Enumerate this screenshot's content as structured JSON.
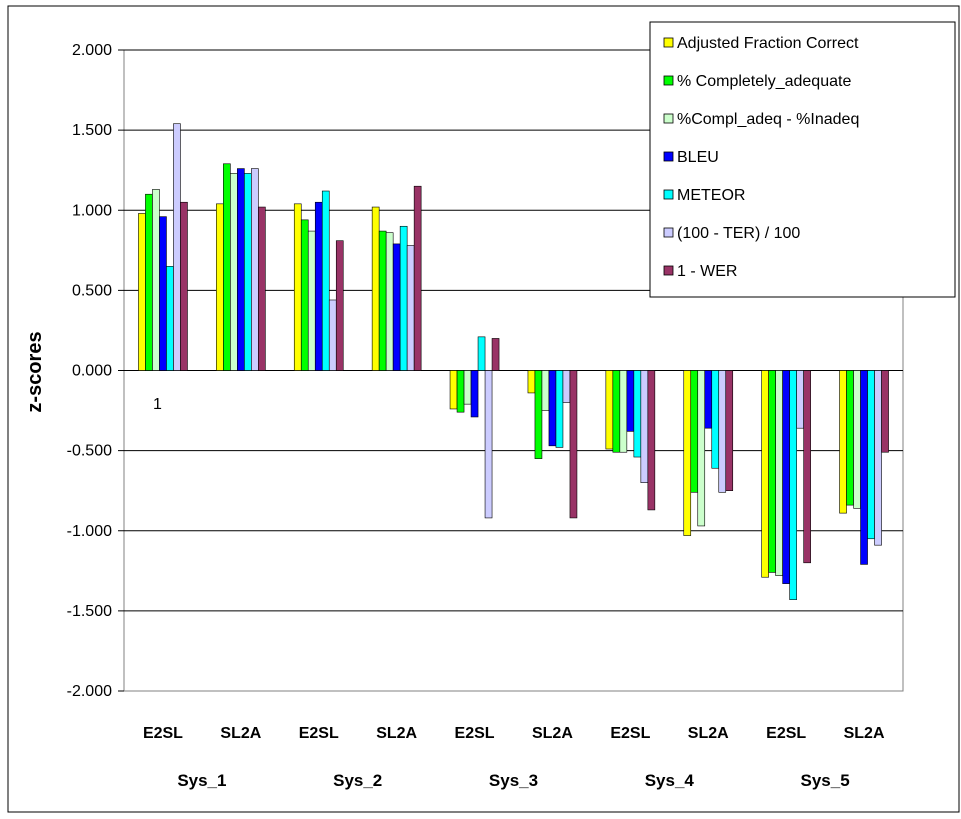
{
  "chart_data": {
    "type": "bar",
    "ylabel": "z-scores",
    "ylim": [
      -2.0,
      2.0
    ],
    "yticks": [
      "2.000",
      "1.500",
      "1.000",
      "0.500",
      "0.000",
      "-0.500",
      "-1.000",
      "-1.500",
      "-2.000"
    ],
    "yticks_values": [
      2.0,
      1.5,
      1.0,
      0.5,
      0.0,
      -0.5,
      -1.0,
      -1.5,
      -2.0
    ],
    "grid": true,
    "legend_position": "top-right",
    "groups": [
      "Sys_1",
      "Sys_2",
      "Sys_3",
      "Sys_4",
      "Sys_5"
    ],
    "subcategories": [
      "E2SL",
      "SL2A"
    ],
    "annotation": "1",
    "series": [
      {
        "name": "Adjusted Fraction Correct",
        "color": "#ffff00",
        "values": [
          0.98,
          1.04,
          1.04,
          1.02,
          -0.24,
          -0.14,
          -0.49,
          -1.03,
          -1.29,
          -0.89
        ]
      },
      {
        "name": "% Completely_adequate",
        "color": "#00ff00",
        "values": [
          1.1,
          1.29,
          0.94,
          0.87,
          -0.26,
          -0.55,
          -0.51,
          -0.76,
          -1.26,
          -0.84
        ]
      },
      {
        "name": "%Compl_adeq - %Inadeq",
        "color": "#ccffcc",
        "values": [
          1.13,
          1.23,
          0.87,
          0.86,
          -0.21,
          -0.25,
          -0.51,
          -0.97,
          -1.28,
          -0.86
        ]
      },
      {
        "name": "BLEU",
        "color": "#0000ff",
        "values": [
          0.96,
          1.26,
          1.05,
          0.79,
          -0.29,
          -0.47,
          -0.38,
          -0.36,
          -1.33,
          -1.21
        ]
      },
      {
        "name": "METEOR",
        "color": "#00ffff",
        "values": [
          0.65,
          1.23,
          1.12,
          0.9,
          0.21,
          -0.48,
          -0.54,
          -0.61,
          -1.43,
          -1.05
        ]
      },
      {
        "name": "(100 - TER)  / 100",
        "color": "#ccccff",
        "values": [
          1.54,
          1.26,
          0.44,
          0.78,
          -0.92,
          -0.2,
          -0.7,
          -0.76,
          -0.36,
          -1.09
        ]
      },
      {
        "name": "1 - WER",
        "color": "#993366",
        "values": [
          1.05,
          1.02,
          0.81,
          1.15,
          0.2,
          -0.92,
          -0.87,
          -0.75,
          -1.2,
          -0.51
        ]
      }
    ]
  }
}
